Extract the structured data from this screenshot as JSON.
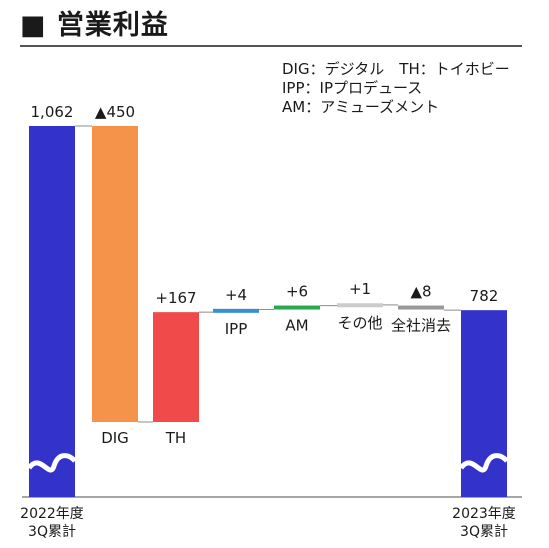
{
  "header": {
    "title": "■ 営業利益"
  },
  "legend": [
    "DIG：デジタル　TH：トイホビー",
    "IPP：IPプロデュース",
    "AM：アミューズメント"
  ],
  "chart_data": {
    "type": "waterfall",
    "title": "営業利益",
    "ylim": [
      0,
      1062
    ],
    "bars": [
      {
        "name": "start",
        "label": "2022年度\n3Q累計",
        "value_label": "1,062",
        "kind": "total",
        "value": 1062,
        "color": "#3333cc"
      },
      {
        "name": "dig",
        "label": "DIG",
        "value_label": "▲450",
        "kind": "decrease",
        "value": -450,
        "color": "#f5934a"
      },
      {
        "name": "th",
        "label": "TH",
        "value_label": "+167",
        "kind": "increase",
        "value": 167,
        "color": "#f04a4a"
      },
      {
        "name": "ipp",
        "label": "IPP",
        "value_label": "+4",
        "kind": "increase",
        "value": 4,
        "color": "#3a8fd0"
      },
      {
        "name": "am",
        "label": "AM",
        "value_label": "+6",
        "kind": "increase",
        "value": 6,
        "color": "#2aa84f"
      },
      {
        "name": "other",
        "label": "その他",
        "value_label": "+1",
        "kind": "increase",
        "value": 1,
        "color": "#cccccc"
      },
      {
        "name": "elim",
        "label": "全社消去",
        "value_label": "▲8",
        "kind": "decrease",
        "value": -8,
        "color": "#999999"
      },
      {
        "name": "end",
        "label": "2023年度\n3Q累計",
        "value_label": "782",
        "kind": "total",
        "value": 782,
        "color": "#3333cc"
      }
    ]
  }
}
